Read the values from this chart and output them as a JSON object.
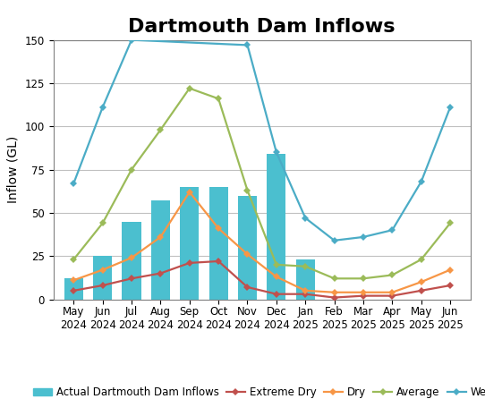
{
  "title": "Dartmouth Dam Inflows",
  "ylabel": "Inflow (GL)",
  "categories": [
    "May\n2024",
    "Jun\n2024",
    "Jul\n2024",
    "Aug\n2024",
    "Sep\n2024",
    "Oct\n2024",
    "Nov\n2024",
    "Dec\n2024",
    "Jan\n2025",
    "Feb\n2025",
    "Mar\n2025",
    "Apr\n2025",
    "May\n2025",
    "Jun\n2025"
  ],
  "bar_values": [
    12,
    25,
    45,
    57,
    65,
    65,
    60,
    84,
    23,
    null,
    null,
    null,
    null,
    null
  ],
  "extreme_dry": [
    5,
    8,
    12,
    15,
    21,
    22,
    7,
    3,
    3,
    1,
    2,
    2,
    5,
    8
  ],
  "dry": [
    11,
    17,
    24,
    36,
    62,
    41,
    26,
    13,
    5,
    4,
    4,
    4,
    10,
    17
  ],
  "average": [
    23,
    44,
    75,
    98,
    122,
    116,
    63,
    20,
    19,
    12,
    12,
    14,
    23,
    44
  ],
  "wet": [
    67,
    111,
    150,
    null,
    null,
    null,
    147,
    85,
    47,
    34,
    36,
    40,
    68,
    111
  ],
  "bar_color": "#4BBFCF",
  "extreme_dry_color": "#C0504D",
  "dry_color": "#F79646",
  "average_color": "#9BBB59",
  "wet_color": "#4BACC6",
  "ylim": [
    0,
    150
  ],
  "yticks": [
    0,
    25,
    50,
    75,
    100,
    125,
    150
  ],
  "title_fontsize": 16,
  "axis_fontsize": 10,
  "tick_fontsize": 8.5,
  "legend_fontsize": 8.5
}
